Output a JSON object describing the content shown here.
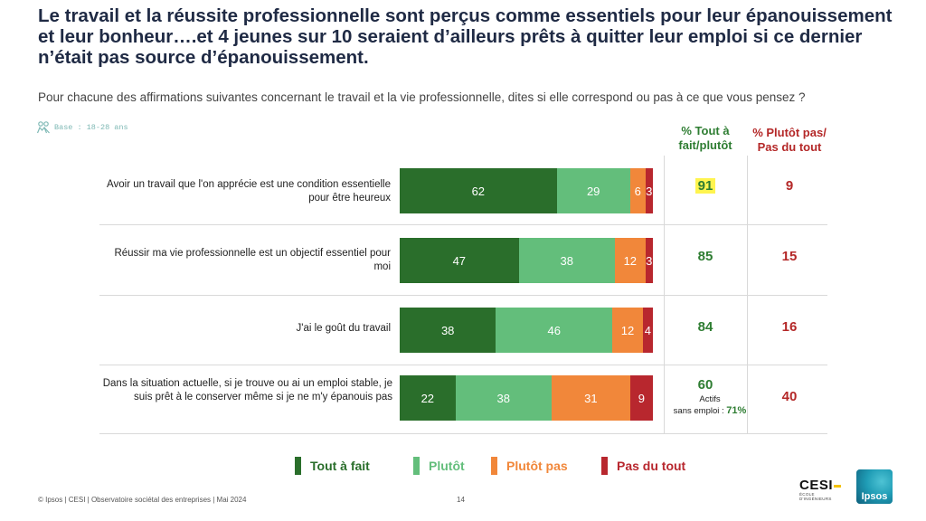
{
  "header": {
    "title": "Le travail et la réussite professionnelle sont perçus comme essentiels pour leur épanouissement et leur bonheur….et 4 jeunes sur 10 seraient d’ailleurs prêts à quitter leur emploi si ce dernier n’était pas source d’épanouissement.",
    "subtitle": "Pour chacune des affirmations suivantes concernant le travail et la vie professionnelle, dites si elle correspond ou pas à ce que vous pensez ?",
    "base": "Base : 18-28 ans"
  },
  "columns": {
    "positive": "% Tout à fait/plutôt",
    "negative": "% Plutôt pas/ Pas du tout"
  },
  "colors": {
    "tout_a_fait": "#2a6e2b",
    "plutot": "#63be7b",
    "plutot_pas": "#f1873a",
    "pas_du_tout": "#b8272e"
  },
  "chart_data": {
    "type": "bar",
    "orientation": "horizontal",
    "stacked": true,
    "categories": [
      "Avoir un travail que l'on apprécie est une condition essentielle pour être heureux",
      "Réussir ma vie professionnelle est un objectif essentiel pour moi",
      "J'ai le goût du travail",
      "Dans la situation actuelle, si je trouve ou ai un emploi stable, je suis prêt à le conserver même si je ne m'y épanouis pas"
    ],
    "series": [
      {
        "name": "Tout à fait",
        "color": "#2a6e2b",
        "values": [
          62,
          47,
          38,
          22
        ]
      },
      {
        "name": "Plutôt",
        "color": "#63be7b",
        "values": [
          29,
          38,
          46,
          38
        ]
      },
      {
        "name": "Plutôt pas",
        "color": "#f1873a",
        "values": [
          6,
          12,
          12,
          31
        ]
      },
      {
        "name": "Pas du tout",
        "color": "#b8272e",
        "values": [
          3,
          3,
          4,
          9
        ]
      }
    ],
    "totals_positive": [
      "91",
      "85",
      "84",
      "60"
    ],
    "totals_negative": [
      "9",
      "15",
      "16",
      "40"
    ],
    "highlighted_total_index": 0,
    "row4_note": {
      "line1": "Actifs",
      "line2": "sans emploi :",
      "value": "71%"
    },
    "legend_position": "bottom"
  },
  "footer": {
    "source": "© Ipsos | CESI | Observatoire sociétal des entreprises | Mai 2024",
    "page": "14"
  },
  "logos": {
    "cesi": "CESI",
    "cesi_sub": "ÉCOLE D'INGÉNIEURS",
    "ipsos": "Ipsos"
  }
}
